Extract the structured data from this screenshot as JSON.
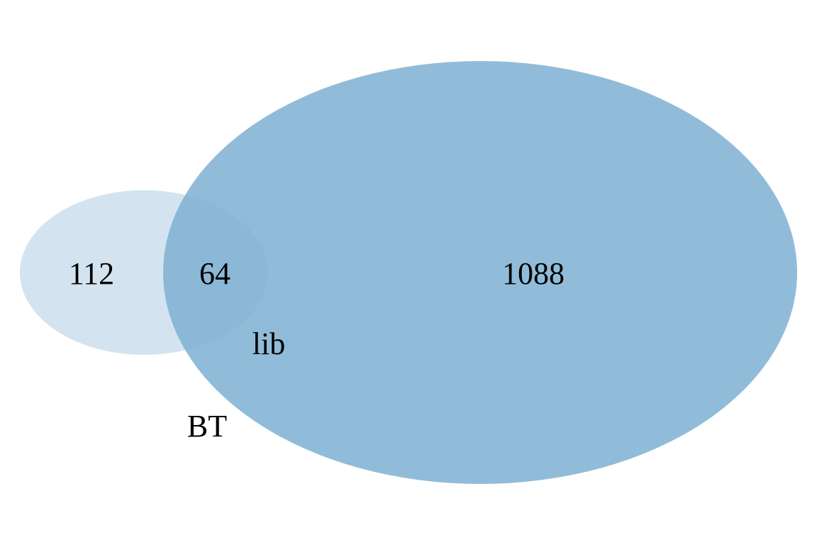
{
  "venn": {
    "sets": [
      {
        "name": "lib",
        "color": "#c6ddec",
        "opacity": 0.78
      },
      {
        "name": "BT",
        "color": "#7fb1d3",
        "opacity": 0.86
      }
    ],
    "regions": {
      "lib_only": "112",
      "lib_and_BT": "64",
      "BT_only": "1088"
    },
    "set_labels": {
      "lib": "lib",
      "BT": "BT"
    }
  }
}
